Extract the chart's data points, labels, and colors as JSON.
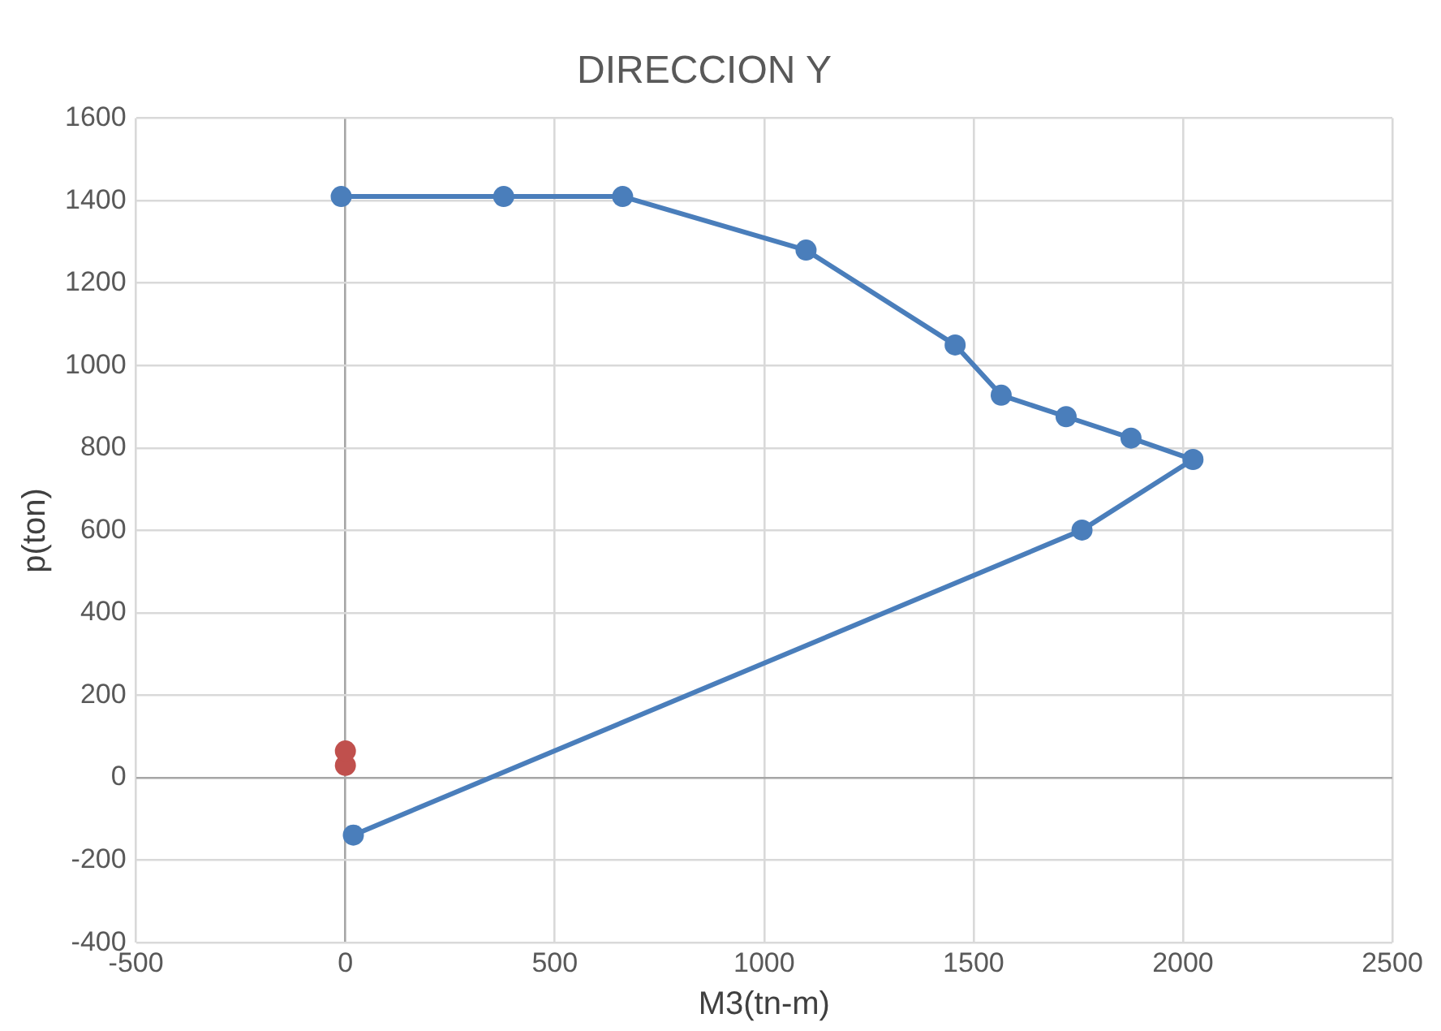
{
  "chart_data": {
    "type": "scatter",
    "title": "DIRECCION Y",
    "xlabel": "M3(tn-m)",
    "ylabel": "p(ton)",
    "series": [
      {
        "type": "line",
        "color": "#4a7ebb",
        "x": [
          -10,
          378,
          662,
          1100,
          1456,
          1566,
          1721,
          1876,
          2024,
          1759,
          19
        ],
        "values": [
          1410,
          1410,
          1410,
          1280,
          1050,
          928,
          876,
          824,
          772,
          601,
          -139
        ]
      },
      {
        "type": "scatter",
        "color": "#c0504d",
        "x": [
          0,
          0
        ],
        "values": [
          30,
          65
        ]
      }
    ],
    "xlim": [
      -500,
      2500
    ],
    "xticks": [
      -500,
      0,
      500,
      1000,
      1500,
      2000,
      2500
    ],
    "ylim": [
      -400,
      1600
    ],
    "yticks": [
      -400,
      -200,
      0,
      200,
      400,
      600,
      800,
      1000,
      1200,
      1400,
      1600
    ],
    "grid": true,
    "legend": false,
    "marker": "circle",
    "line_style": "solid"
  }
}
